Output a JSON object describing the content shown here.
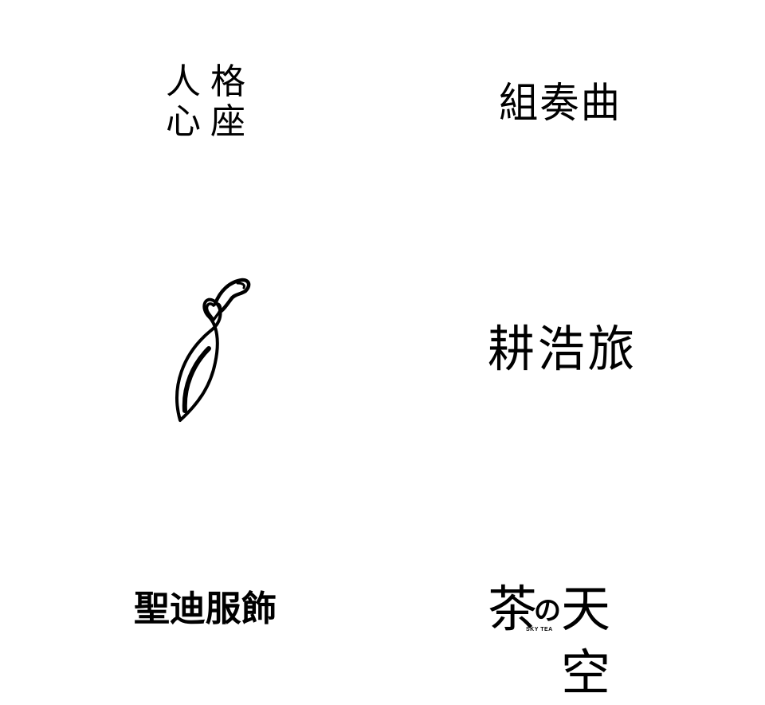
{
  "logos": {
    "renkaku": {
      "line1": "人格",
      "line2": "心座"
    },
    "suite": {
      "text": "組奏曲"
    },
    "leaf_mark": {
      "icon": "leaf-figure-logo-icon"
    },
    "kozoku": {
      "text": "耕浩旅"
    },
    "fashion": {
      "text": "聖迪服飾"
    },
    "sky_tea": {
      "char1": "茶",
      "particle": "の",
      "chars": "天空",
      "subtitle": "SKY TEA"
    }
  }
}
